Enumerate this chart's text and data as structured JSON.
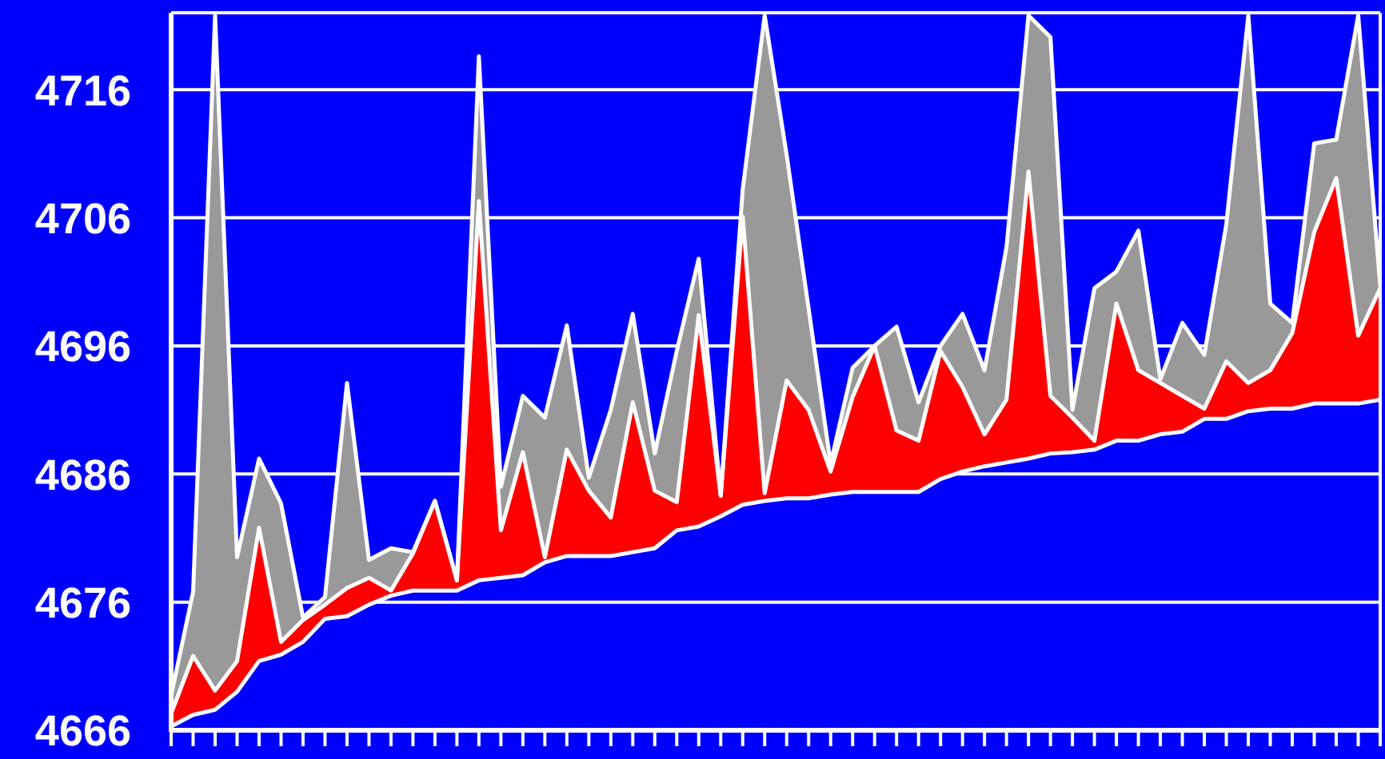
{
  "chart_data": {
    "type": "area",
    "grid": "y",
    "tick_labels": "y",
    "categories": [
      null,
      null,
      null,
      null,
      null,
      null,
      null,
      null,
      null,
      null,
      null,
      null,
      null,
      null,
      null,
      null,
      null,
      null,
      null,
      null,
      null,
      null,
      null,
      null,
      null,
      null,
      null,
      null,
      null,
      null,
      null,
      null,
      null,
      null,
      null,
      null,
      null,
      null,
      null,
      null,
      null,
      null,
      null,
      null,
      null,
      null,
      null,
      null,
      null,
      null,
      null,
      null,
      null,
      null,
      null,
      null
    ],
    "ylim": [
      4666,
      4722
    ],
    "yticks": [
      4666,
      4676,
      4686,
      4696,
      4706,
      4716
    ],
    "series": [
      {
        "color": "#0000ff",
        "values": [
          4666.3,
          4667.2,
          4667.6,
          4669.0,
          4671.4,
          4671.9,
          4672.9,
          4674.7,
          4674.9,
          4675.8,
          4676.5,
          4676.9,
          4676.9,
          4676.9,
          4677.7,
          4677.9,
          4678.1,
          4679.1,
          4679.6,
          4679.6,
          4679.6,
          4679.9,
          4680.2,
          4681.6,
          4681.9,
          4682.7,
          4683.6,
          4683.9,
          4684.1,
          4684.1,
          4684.4,
          4684.6,
          4684.6,
          4684.6,
          4684.6,
          4685.6,
          4686.2,
          4686.6,
          4686.9,
          4687.2,
          4687.6,
          4687.7,
          4687.9,
          4688.6,
          4688.6,
          4689.1,
          4689.3,
          4690.3,
          4690.3,
          4690.9,
          4691.1,
          4691.1,
          4691.5,
          4691.5,
          4691.5,
          4691.8
        ]
      },
      {
        "color": "#ff0000",
        "values": [
          4667.3,
          4671.8,
          4669.1,
          4671.4,
          4681.8,
          4672.9,
          4674.6,
          4675.8,
          4677.1,
          4677.9,
          4676.9,
          4679.8,
          4683.9,
          4677.7,
          4707.3,
          4681.6,
          4687.7,
          4679.5,
          4687.9,
          4684.7,
          4682.6,
          4691.6,
          4684.7,
          4683.8,
          4698.4,
          4684.3,
          4706.1,
          4684.5,
          4693.3,
          4691.0,
          4686.2,
          4692.0,
          4696.0,
          4689.4,
          4688.6,
          4695.6,
          4692.8,
          4689.1,
          4691.8,
          4709.6,
          4692.1,
          4690.4,
          4688.6,
          4699.3,
          4694.1,
          4693.1,
          4692.1,
          4691.1,
          4694.8,
          4693.1,
          4694.1,
          4697.0,
          4704.9,
          4709.1,
          4696.8,
          4700.5
        ]
      },
      {
        "color": "#999999",
        "values": [
          4668.7,
          4676.8,
          4721.8,
          4679.5,
          4687.2,
          4683.7,
          4674.8,
          4676.4,
          4693.1,
          4679.3,
          4680.2,
          4679.9,
          4683.9,
          4677.7,
          4718.6,
          4685.0,
          4692.1,
          4690.4,
          4697.6,
          4685.7,
          4691.0,
          4698.5,
          4687.6,
          4695.6,
          4702.8,
          4684.3,
          4708.2,
          4721.8,
          4710.9,
          4698.9,
          4686.8,
          4694.3,
          4696.0,
          4697.5,
          4691.6,
          4696.0,
          4698.5,
          4694.1,
          4703.7,
          4721.8,
          4720.1,
          4691.0,
          4700.5,
          4701.8,
          4705.0,
          4693.4,
          4697.8,
          4695.3,
          4705.5,
          4721.8,
          4699.3,
          4697.8,
          4711.8,
          4712.1,
          4721.8,
          4700.7
        ]
      }
    ]
  }
}
